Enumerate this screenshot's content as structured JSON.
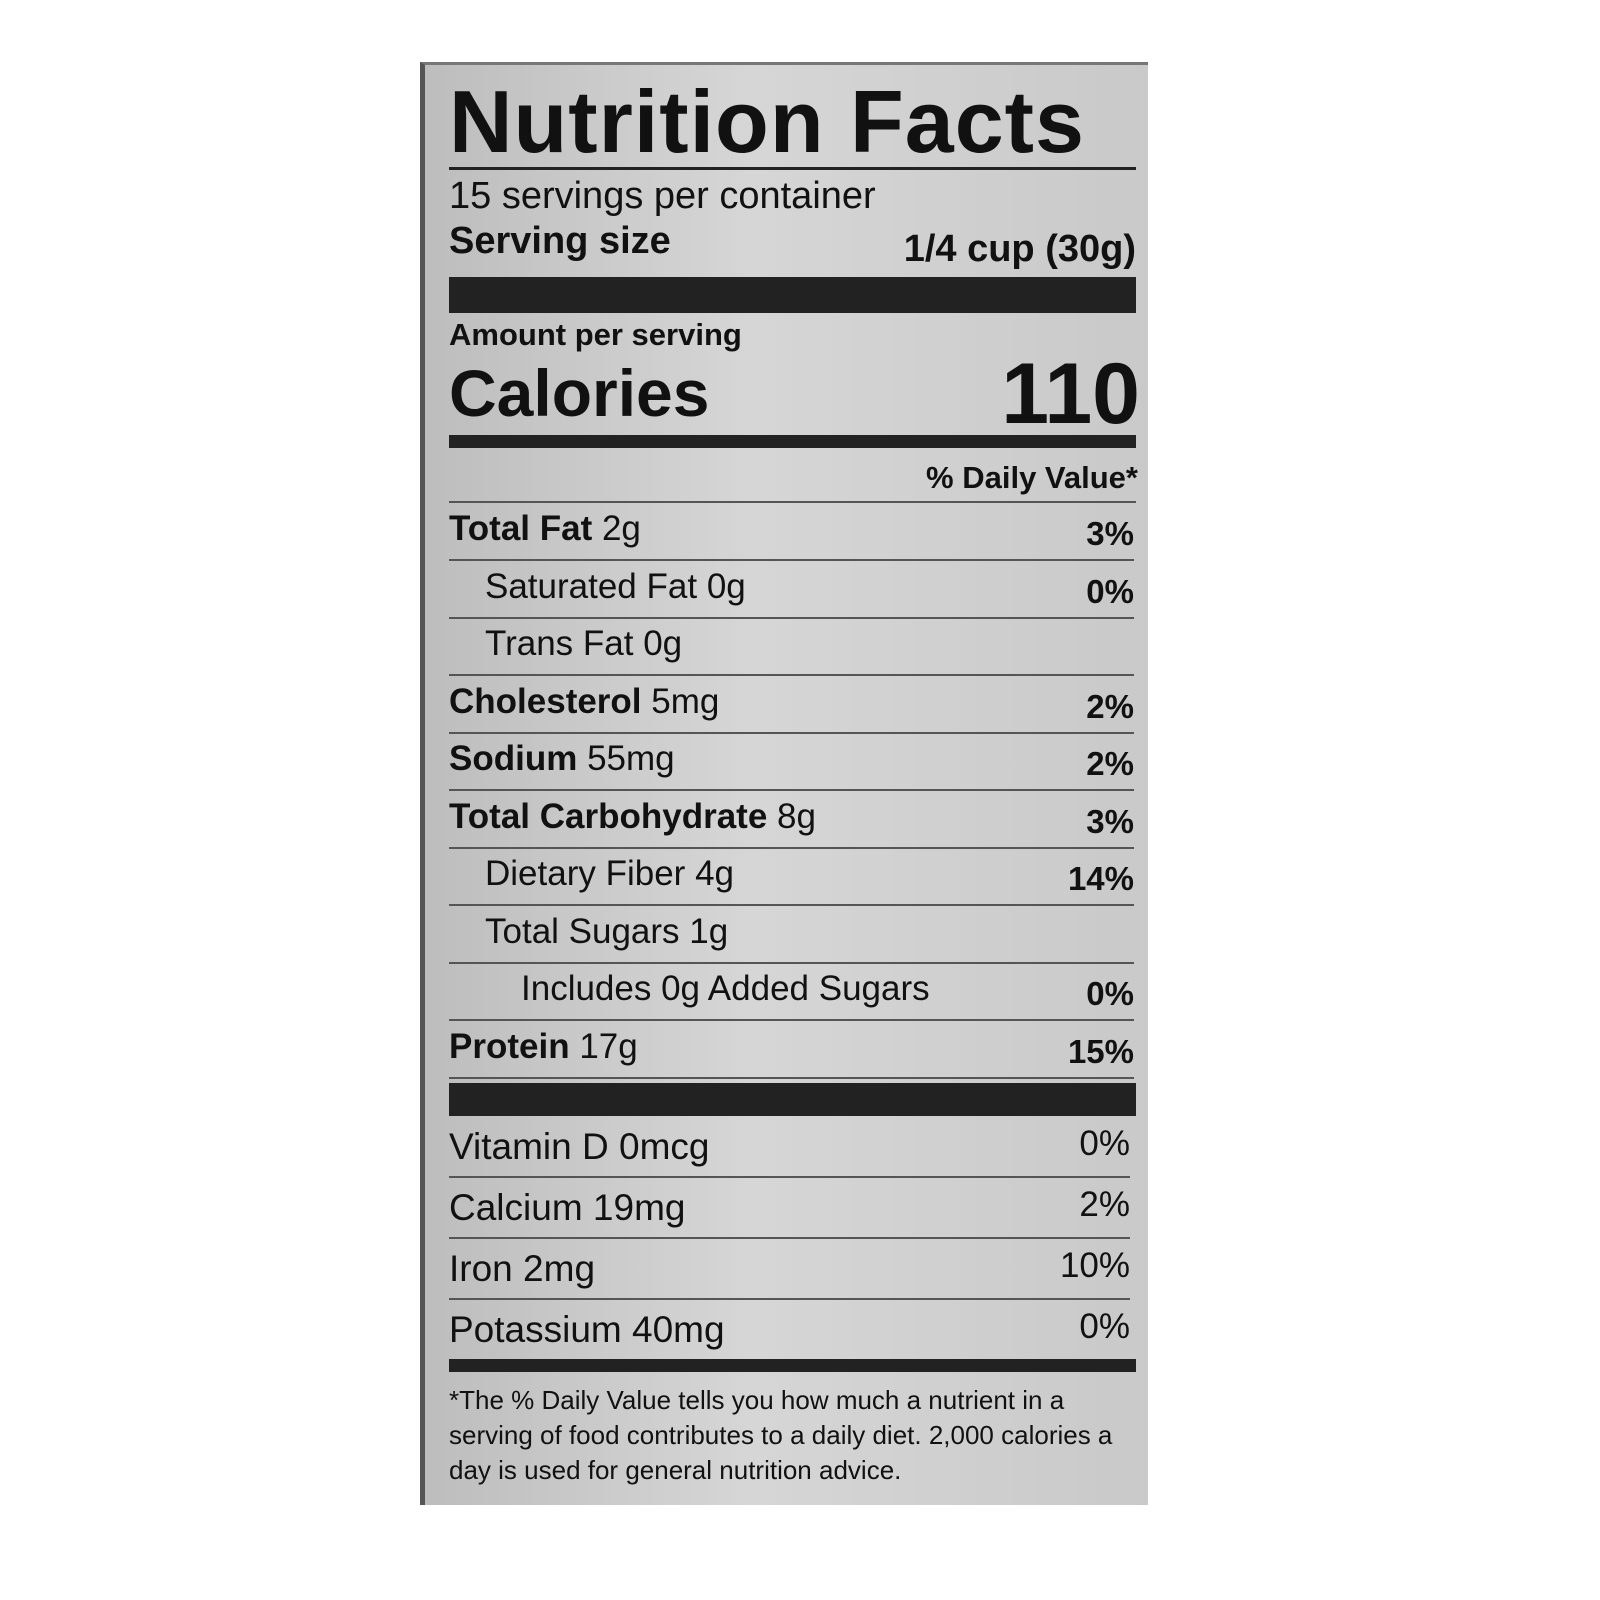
{
  "title": "Nutrition Facts",
  "servings_per_container": "15 servings per container",
  "serving_size_label": "Serving size",
  "serving_size_value": "1/4 cup (30g)",
  "amount_per_serving": "Amount per serving",
  "calories_label": "Calories",
  "calories_value": "110",
  "daily_value_header": "% Daily Value*",
  "nutrients": [
    {
      "name": "Total Fat",
      "amount": "2g",
      "dv": "3%",
      "bold": true,
      "indent": 0
    },
    {
      "name": "Saturated Fat",
      "amount": "0g",
      "dv": "0%",
      "bold": false,
      "indent": 1
    },
    {
      "name": "Trans Fat",
      "amount": "0g",
      "dv": "",
      "bold": false,
      "indent": 1
    },
    {
      "name": "Cholesterol",
      "amount": "5mg",
      "dv": "2%",
      "bold": true,
      "indent": 0
    },
    {
      "name": "Sodium",
      "amount": "55mg",
      "dv": "2%",
      "bold": true,
      "indent": 0
    },
    {
      "name": "Total Carbohydrate",
      "amount": "8g",
      "dv": "3%",
      "bold": true,
      "indent": 0
    },
    {
      "name": "Dietary Fiber",
      "amount": "4g",
      "dv": "14%",
      "bold": false,
      "indent": 1
    },
    {
      "name": "Total Sugars",
      "amount": "1g",
      "dv": "",
      "bold": false,
      "indent": 1
    },
    {
      "name": "Includes 0g Added Sugars",
      "amount": "",
      "dv": "0%",
      "bold": false,
      "indent": 2
    },
    {
      "name": "Protein",
      "amount": "17g",
      "dv": "15%",
      "bold": true,
      "indent": 0
    }
  ],
  "vitamins": [
    {
      "name": "Vitamin D",
      "amount": "0mcg",
      "dv": "0%"
    },
    {
      "name": "Calcium",
      "amount": "19mg",
      "dv": "2%"
    },
    {
      "name": "Iron",
      "amount": "2mg",
      "dv": "10%"
    },
    {
      "name": "Potassium",
      "amount": "40mg",
      "dv": "0%"
    }
  ],
  "footnote": "*The % Daily Value tells you how much a nutrient in a serving of food contributes to a daily diet. 2,000 calories a day is used for general nutrition advice."
}
